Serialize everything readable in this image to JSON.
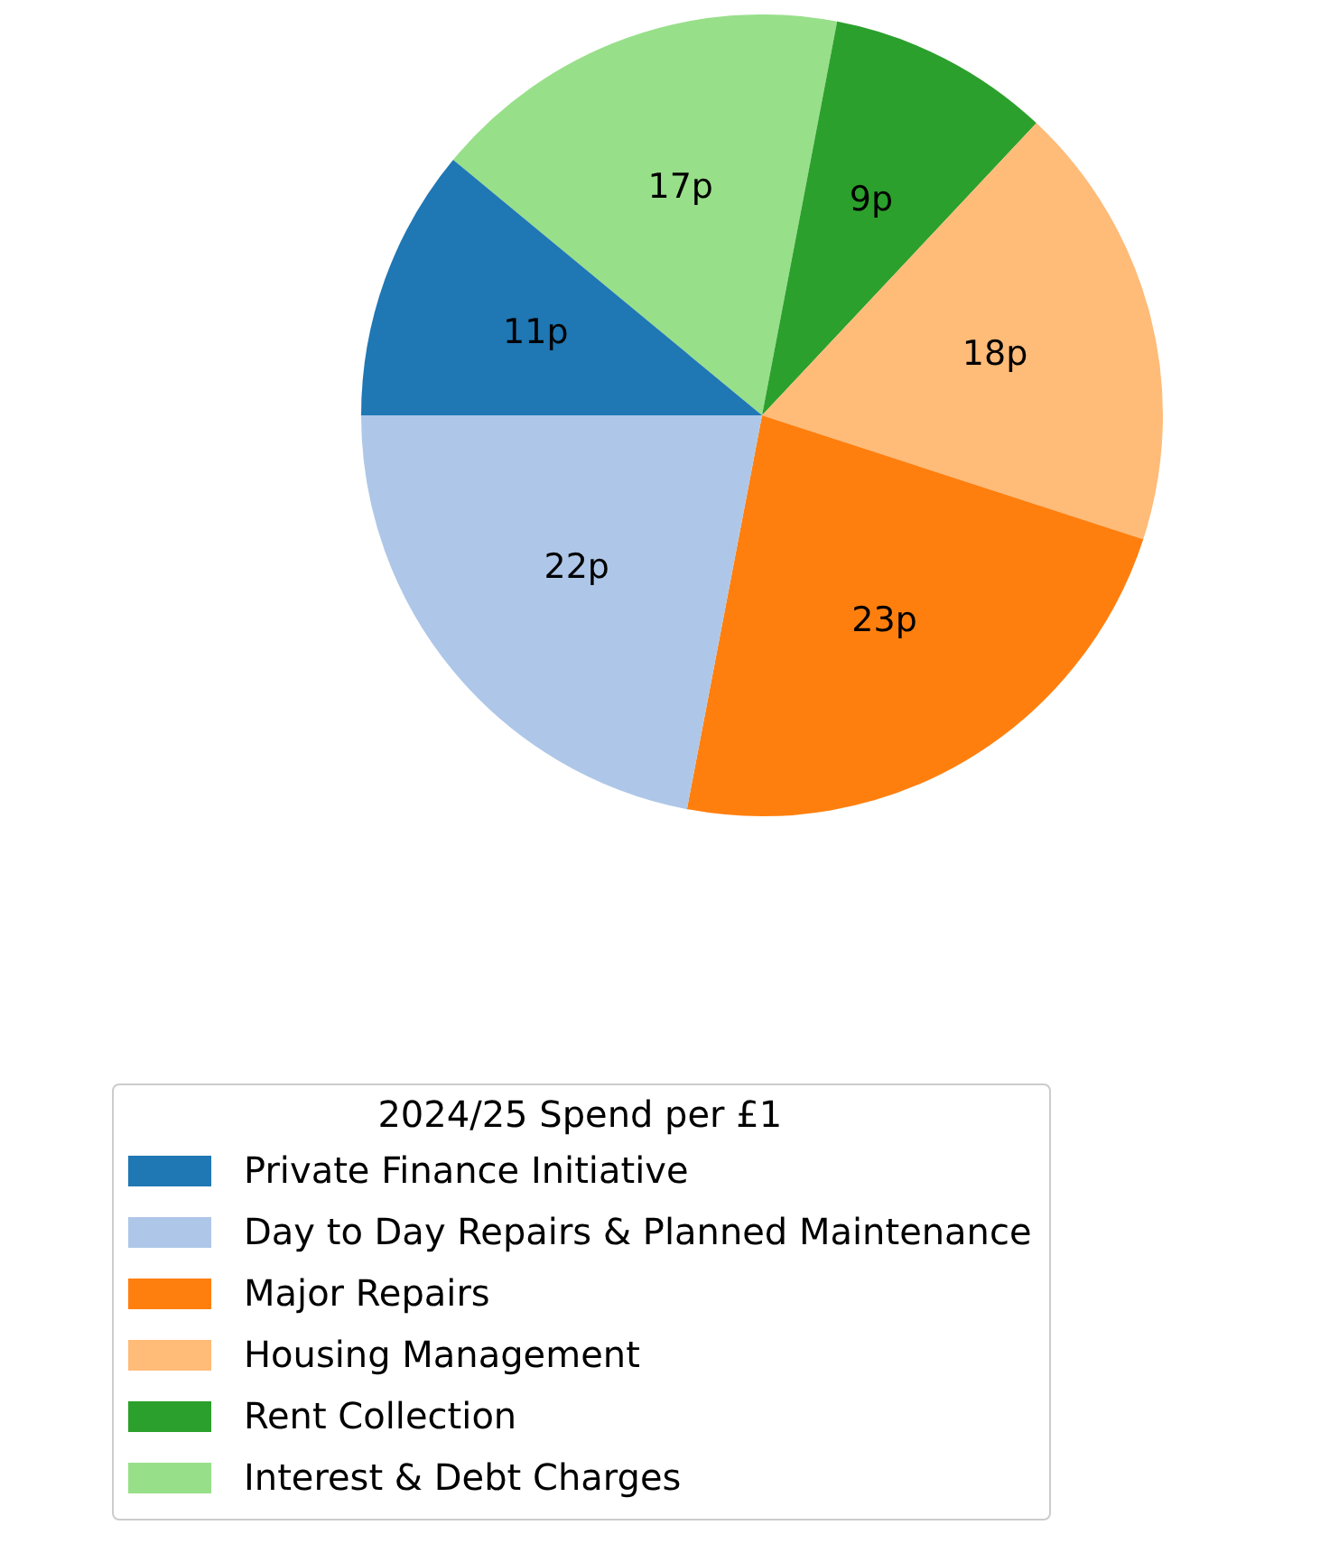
{
  "chart_data": {
    "type": "pie",
    "categories": [
      "Private Finance Initiative",
      "Day to Day Repairs & Planned Maintenance",
      "Major Repairs",
      "Housing Management",
      "Rent Collection",
      "Interest & Debt Charges"
    ],
    "values": [
      11,
      22,
      23,
      18,
      9,
      17
    ],
    "colors": [
      "#1f77b4",
      "#aec7e8",
      "#ff7f0e",
      "#ffbb78",
      "#2ca02c",
      "#98df8a"
    ],
    "value_labels": [
      "11p",
      "22p",
      "23p",
      "18p",
      "9p",
      "17p"
    ],
    "legend_title": "2024/25 Spend per £1",
    "legend": "bottom"
  }
}
